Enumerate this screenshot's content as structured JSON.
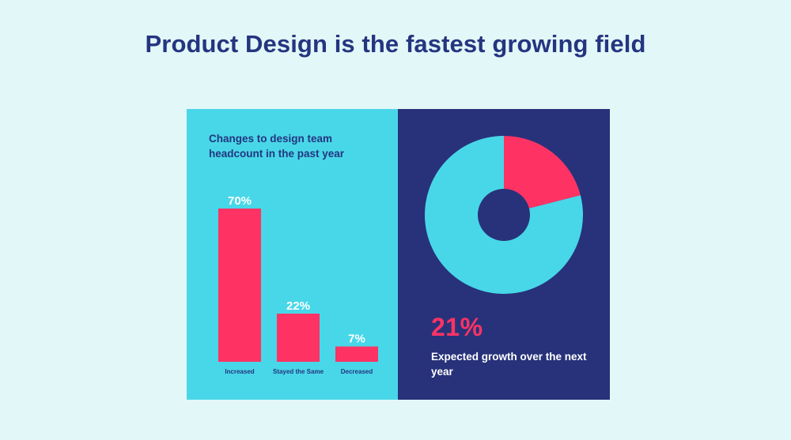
{
  "title": "Product Design is the fastest growing field",
  "colors": {
    "background": "#e2f7f7",
    "title": "#243580",
    "left_panel": "#48d7e8",
    "right_panel": "#27327a",
    "accent": "#fe3364",
    "donut_rest": "#48d7e8"
  },
  "chart_data": [
    {
      "type": "bar",
      "title": "Changes to design team headcount in the past year",
      "categories": [
        "Increased",
        "Stayed the Same",
        "Decreased"
      ],
      "values": [
        70,
        22,
        7
      ],
      "value_labels": [
        "70%",
        "22%",
        "7%"
      ],
      "ylim": [
        0,
        70
      ],
      "grid": false,
      "bar_color": "#fe3364"
    },
    {
      "type": "pie",
      "style": "donut",
      "labels": [
        "Expected growth",
        ""
      ],
      "values": [
        21,
        79
      ],
      "colors": [
        "#fe3364",
        "#48d7e8"
      ],
      "stat": "21%",
      "caption": "Expected growth over the next year"
    }
  ]
}
